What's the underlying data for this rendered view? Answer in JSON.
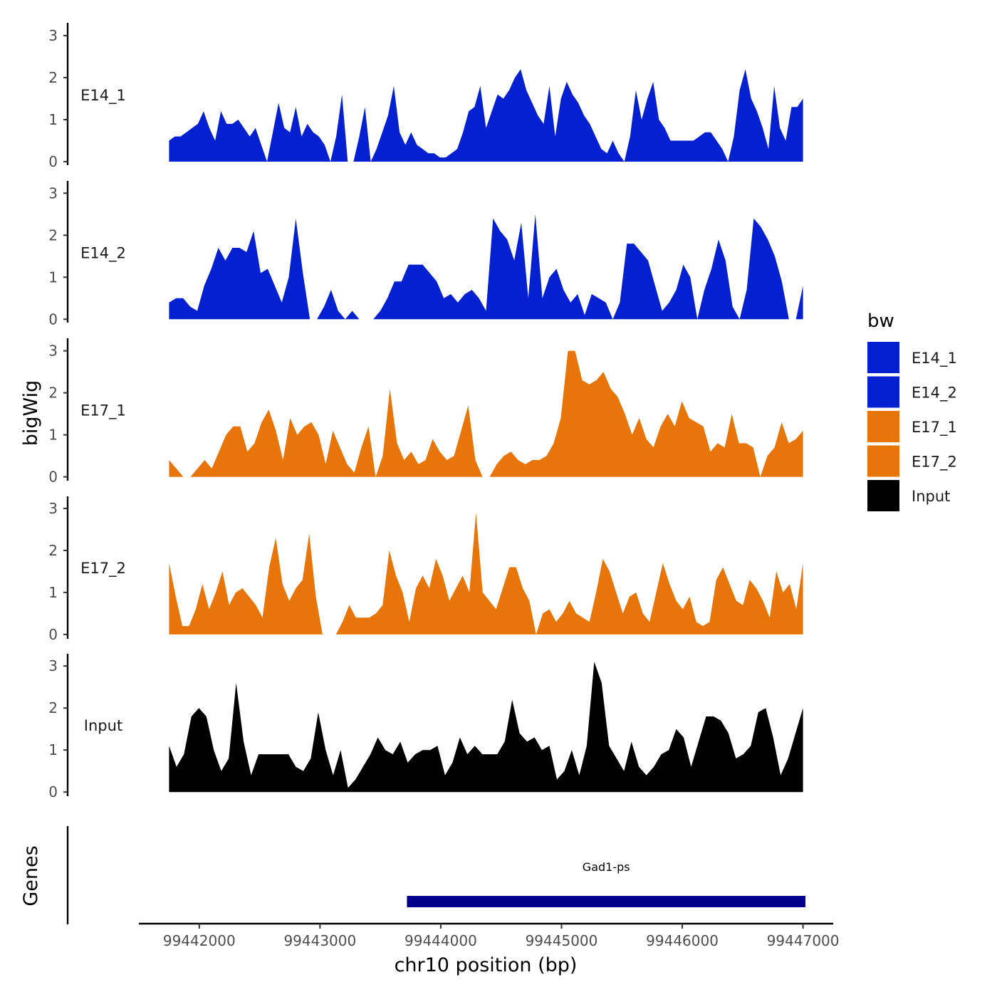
{
  "chart_data": {
    "type": "area",
    "title": "",
    "xlabel": "chr10 position (bp)",
    "ylabel": "bigWig",
    "genes_label": "Genes",
    "xlim": [
      99441500,
      99447250
    ],
    "ylim": [
      0,
      3.3
    ],
    "x_ticks": [
      99442000,
      99443000,
      99444000,
      99445000,
      99446000,
      99447000
    ],
    "y_ticks": [
      0,
      1,
      2,
      3
    ],
    "x_start": 99441750,
    "x_step": 50,
    "legend": {
      "title": "bw",
      "position": "right",
      "entries": [
        {
          "name": "E14_1",
          "color": "#0520D0"
        },
        {
          "name": "E14_2",
          "color": "#0520D0"
        },
        {
          "name": "E17_1",
          "color": "#E8750A"
        },
        {
          "name": "E17_2",
          "color": "#E8750A"
        },
        {
          "name": "Input",
          "color": "#000000"
        }
      ]
    },
    "series": [
      {
        "name": "E14_1",
        "color": "#0520D0",
        "values": [
          0.5,
          0.6,
          0.6,
          0.7,
          0.8,
          0.9,
          1.2,
          0.8,
          0.5,
          1.2,
          0.9,
          0.9,
          1.0,
          0.8,
          0.6,
          0.8,
          0.4,
          0.0,
          0.7,
          1.4,
          0.8,
          0.7,
          1.3,
          0.6,
          0.9,
          0.7,
          0.6,
          0.4,
          0.0,
          0.6,
          1.6,
          0.0,
          0.0,
          0.6,
          1.3,
          0.0,
          0.3,
          0.7,
          1.1,
          1.8,
          0.7,
          0.4,
          0.7,
          0.4,
          0.3,
          0.2,
          0.2,
          0.1,
          0.1,
          0.2,
          0.3,
          0.7,
          1.2,
          1.3,
          1.8,
          0.8,
          1.2,
          1.6,
          1.5,
          1.7,
          2.0,
          2.2,
          1.7,
          1.4,
          1.1,
          0.9,
          1.8,
          0.6,
          1.5,
          1.9,
          1.6,
          1.4,
          1.1,
          0.9,
          0.6,
          0.3,
          0.2,
          0.5,
          0.2,
          0.0,
          0.6,
          1.7,
          1.0,
          1.5,
          1.9,
          1.0,
          0.8,
          0.5,
          0.5,
          0.5,
          0.5,
          0.5,
          0.6,
          0.7,
          0.7,
          0.5,
          0.3,
          0.0,
          0.6,
          1.7,
          2.2,
          1.5,
          1.2,
          0.8,
          0.3,
          1.8,
          0.8,
          0.5,
          1.3,
          1.3,
          1.5
        ]
      },
      {
        "name": "E14_2",
        "color": "#0520D0",
        "values": [
          0.4,
          0.5,
          0.5,
          0.3,
          0.2,
          0.8,
          1.2,
          1.7,
          1.4,
          1.7,
          1.7,
          1.6,
          2.1,
          1.1,
          1.2,
          0.8,
          0.4,
          1.0,
          2.4,
          1.1,
          0.0,
          0.0,
          0.3,
          0.7,
          0.2,
          0.0,
          0.2,
          0.0,
          0.0,
          0.0,
          0.2,
          0.5,
          0.9,
          0.9,
          1.3,
          1.3,
          1.3,
          1.1,
          0.9,
          0.5,
          0.6,
          0.4,
          0.6,
          0.7,
          0.5,
          0.2,
          2.4,
          2.1,
          1.9,
          1.4,
          2.3,
          0.5,
          2.5,
          0.5,
          1.0,
          1.2,
          0.7,
          0.4,
          0.6,
          0.1,
          0.6,
          0.5,
          0.4,
          0.0,
          0.4,
          1.8,
          1.8,
          1.6,
          1.4,
          0.8,
          0.2,
          0.4,
          0.7,
          1.3,
          1.0,
          0.0,
          0.7,
          1.2,
          1.9,
          1.4,
          0.3,
          0.0,
          0.7,
          2.4,
          2.2,
          1.9,
          1.5,
          0.9,
          0.0,
          0.0,
          0.8
        ]
      },
      {
        "name": "E17_1",
        "color": "#E8750A",
        "values": [
          0.4,
          0.2,
          0.0,
          0.0,
          0.2,
          0.4,
          0.2,
          0.6,
          1.0,
          1.2,
          1.2,
          0.6,
          0.8,
          1.3,
          1.6,
          1.1,
          0.4,
          1.4,
          1.0,
          1.2,
          1.3,
          1.0,
          0.3,
          1.1,
          0.7,
          0.3,
          0.1,
          0.7,
          1.2,
          0.0,
          0.5,
          2.1,
          0.8,
          0.4,
          0.6,
          0.3,
          0.4,
          0.9,
          0.6,
          0.4,
          0.5,
          1.1,
          1.7,
          0.4,
          0.0,
          0.0,
          0.3,
          0.5,
          0.6,
          0.4,
          0.3,
          0.4,
          0.4,
          0.5,
          0.8,
          1.4,
          3.0,
          3.0,
          2.3,
          2.2,
          2.3,
          2.5,
          2.1,
          1.9,
          1.5,
          1.0,
          1.4,
          0.9,
          0.7,
          1.2,
          1.5,
          1.2,
          1.8,
          1.4,
          1.3,
          1.2,
          0.6,
          0.8,
          0.7,
          1.5,
          0.8,
          0.8,
          0.7,
          0.0,
          0.5,
          0.7,
          1.3,
          0.8,
          0.9,
          1.1
        ]
      },
      {
        "name": "E17_2",
        "color": "#E8750A",
        "values": [
          1.7,
          0.9,
          0.2,
          0.2,
          0.6,
          1.2,
          0.6,
          1.0,
          1.5,
          0.7,
          1.0,
          1.1,
          0.9,
          0.7,
          0.4,
          1.6,
          2.3,
          1.2,
          0.8,
          1.1,
          1.3,
          2.4,
          0.9,
          0.0,
          0.0,
          0.0,
          0.3,
          0.7,
          0.4,
          0.4,
          0.4,
          0.5,
          0.7,
          2.0,
          1.4,
          1.0,
          0.3,
          1.1,
          1.4,
          1.1,
          1.8,
          1.4,
          0.8,
          1.1,
          1.4,
          1.0,
          2.9,
          1.0,
          0.8,
          0.6,
          1.1,
          1.6,
          1.6,
          1.1,
          0.8,
          0.0,
          0.5,
          0.6,
          0.3,
          0.5,
          0.8,
          0.5,
          0.4,
          0.3,
          1.0,
          1.8,
          1.5,
          1.0,
          0.5,
          0.9,
          1.0,
          0.5,
          0.3,
          1.0,
          1.7,
          1.2,
          0.8,
          0.6,
          0.9,
          0.3,
          0.2,
          0.3,
          1.3,
          1.6,
          1.2,
          0.8,
          0.7,
          1.3,
          1.1,
          0.8,
          0.4,
          1.5,
          1.0,
          1.2,
          0.6,
          1.7
        ]
      },
      {
        "name": "Input",
        "color": "#000000",
        "values": [
          1.1,
          0.6,
          0.9,
          1.8,
          2.0,
          1.8,
          1.0,
          0.5,
          0.8,
          2.6,
          1.2,
          0.4,
          0.9,
          0.9,
          0.9,
          0.9,
          0.9,
          0.6,
          0.5,
          0.8,
          1.9,
          1.0,
          0.4,
          1.0,
          0.1,
          0.3,
          0.6,
          0.9,
          1.3,
          1.0,
          0.9,
          1.2,
          0.7,
          0.9,
          1.0,
          1.0,
          1.1,
          0.4,
          0.7,
          1.3,
          0.9,
          1.1,
          0.9,
          0.9,
          0.9,
          1.2,
          2.2,
          1.4,
          1.2,
          1.3,
          1.0,
          1.1,
          0.3,
          0.5,
          1.0,
          0.4,
          1.1,
          3.1,
          2.6,
          1.1,
          0.8,
          0.5,
          1.2,
          0.6,
          0.4,
          0.6,
          0.9,
          1.0,
          1.5,
          1.3,
          0.6,
          1.2,
          1.8,
          1.8,
          1.7,
          1.4,
          0.8,
          0.9,
          1.1,
          1.9,
          2.0,
          1.3,
          0.4,
          0.8,
          1.4,
          2.0
        ]
      }
    ],
    "genes": [
      {
        "name": "Gad1-ps",
        "start": 99443720,
        "end": 99447020,
        "color": "#00008B"
      }
    ]
  }
}
